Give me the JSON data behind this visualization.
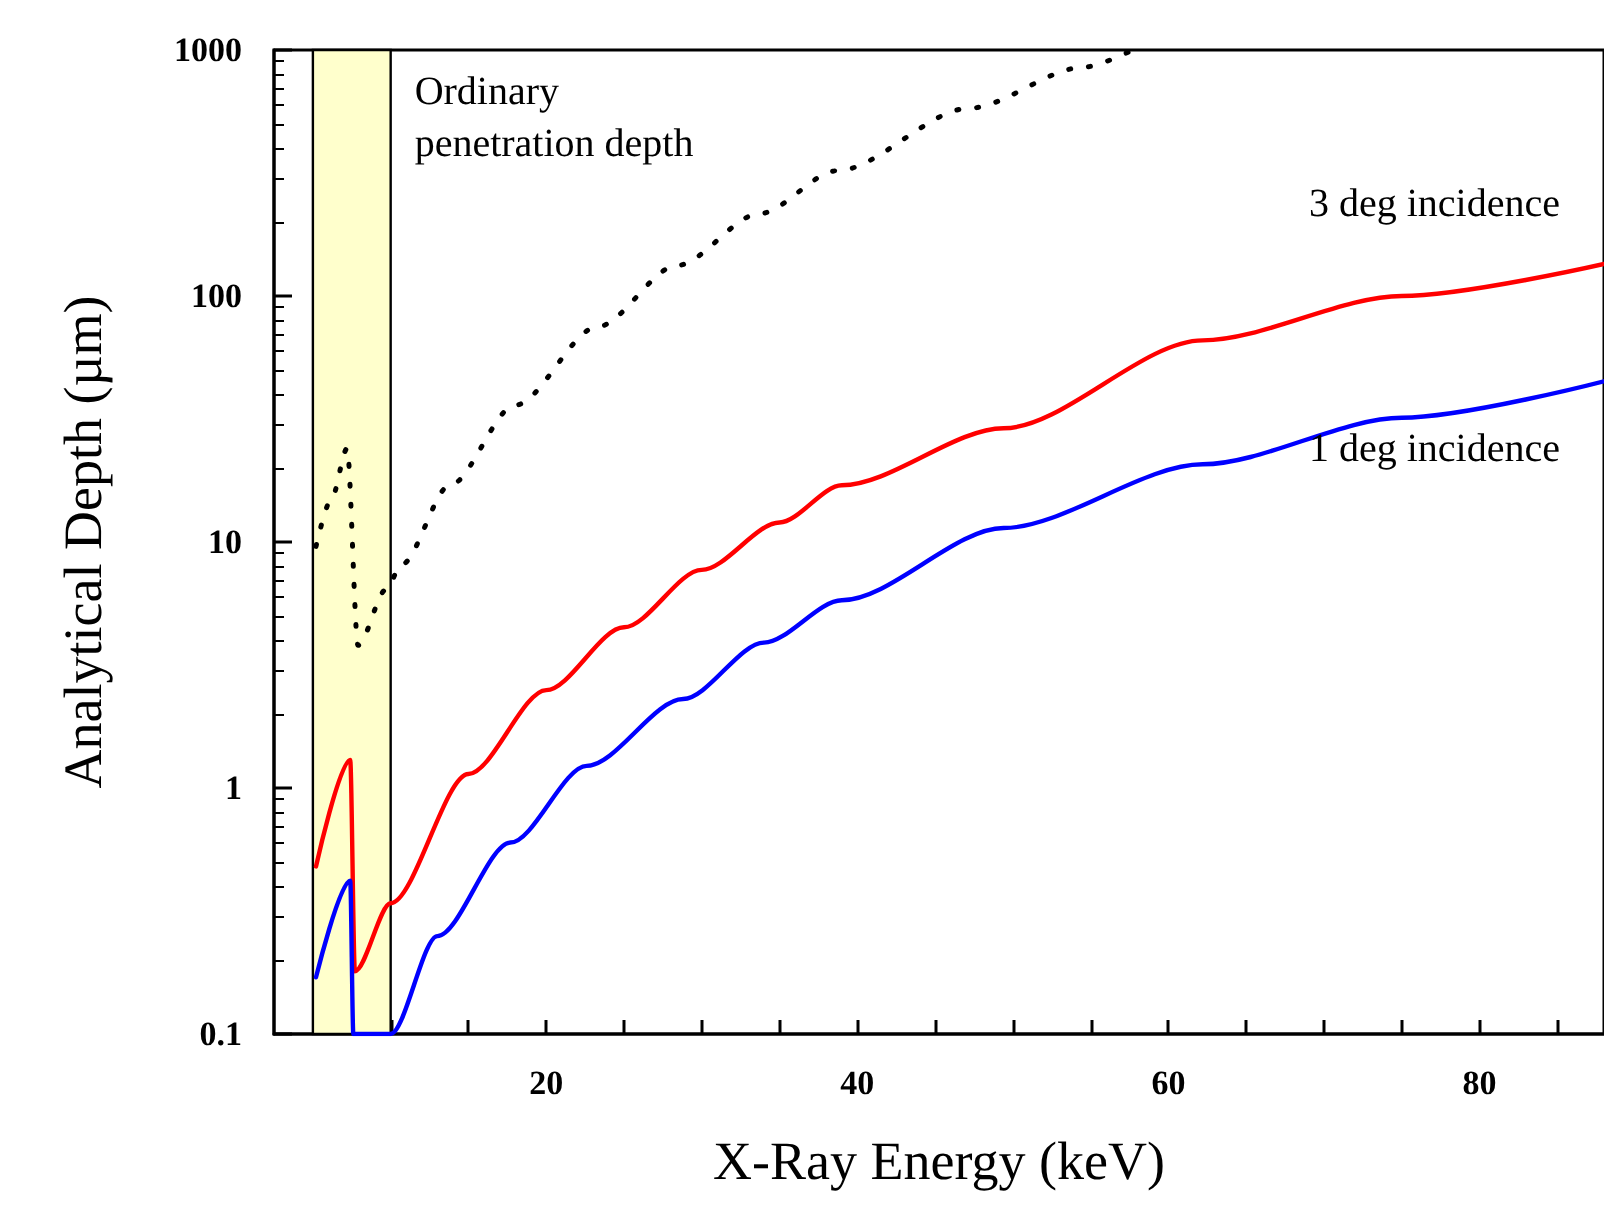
{
  "chart_data": {
    "type": "line",
    "xlabel": "X-Ray Energy (keV)",
    "ylabel": "Analytical Depth (µm)",
    "xlim": [
      2.5,
      88
    ],
    "xticks": [
      {
        "value": 5,
        "label": null
      },
      {
        "value": 10,
        "label": null
      },
      {
        "value": 15,
        "label": null
      },
      20,
      {
        "value": 25,
        "label": null
      },
      {
        "value": 30,
        "label": null
      },
      {
        "value": 35,
        "label": null
      },
      40,
      {
        "value": 45,
        "label": null
      },
      {
        "value": 50,
        "label": null
      },
      {
        "value": 55,
        "label": null
      },
      60,
      {
        "value": 65,
        "label": null
      },
      {
        "value": 70,
        "label": null
      },
      {
        "value": 75,
        "label": null
      },
      80,
      {
        "value": 85,
        "label": null
      }
    ],
    "ylim": [
      0.1,
      1000
    ],
    "yticks": [
      0.1,
      1,
      10,
      100,
      1000
    ],
    "log": "y",
    "grid": false,
    "marker": "none",
    "bands": [
      {
        "axis": "x",
        "from": 5,
        "to": 10,
        "label": "Ordinary\npenetration depth",
        "color": "#ffffcc"
      }
    ],
    "series": [
      {
        "name": "3 deg incidence",
        "color": "#ff0000",
        "x": [
          5.2,
          7.4,
          7.7,
          10,
          15,
          20,
          25,
          30,
          35,
          39,
          49.4,
          62.2,
          75,
          88
        ],
        "values": [
          0.48,
          1.3,
          0.18,
          0.34,
          1.14,
          2.5,
          4.5,
          7.7,
          12,
          17,
          29,
          66,
          100,
          135
        ]
      },
      {
        "name": "1 deg incidence",
        "color": "#0000ff",
        "x": [
          5.2,
          7.4,
          7.6,
          10,
          13,
          17.7,
          22.6,
          28.8,
          34,
          39,
          49.4,
          62.2,
          75,
          88
        ],
        "values": [
          0.17,
          0.42,
          0.1,
          0.1,
          0.25,
          0.6,
          1.23,
          2.3,
          3.9,
          5.8,
          11.4,
          20.7,
          32,
          45
        ]
      },
      {
        "color": "#000000",
        "line_style": "dotted",
        "x": [
          5.2,
          6.2,
          7.2,
          7.9,
          9.7,
          10.7,
          13.8,
          18,
          23.3,
          28.4,
          33.7,
          38.7,
          47.2,
          54.5,
          57.7
        ],
        "values": [
          9.6,
          15,
          24,
          3.8,
          6.4,
          8.1,
          17,
          36,
          75,
          133,
          216,
          323,
          580,
          850,
          1000
        ]
      }
    ]
  }
}
